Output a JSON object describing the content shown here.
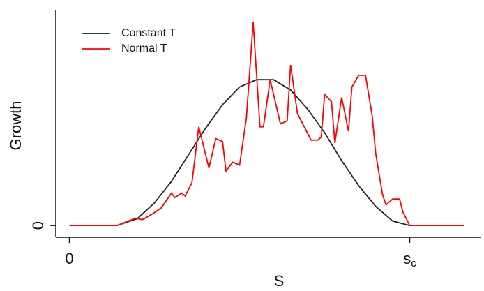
{
  "chart_data": {
    "type": "line",
    "xlabel": "S",
    "ylabel": "Growth",
    "xlim": [
      -0.04,
      1.21
    ],
    "ylim": [
      -0.08,
      1.46
    ],
    "xticks": [
      0,
      {
        "value": 1,
        "label": "sc"
      }
    ],
    "yticks": [
      0
    ],
    "legend": "top-left",
    "series": [
      {
        "name": "Constant T",
        "color": "#222222",
        "x": [
          0,
          0.14,
          0.2,
          0.25,
          0.3,
          0.35,
          0.4,
          0.45,
          0.5,
          0.55,
          0.6,
          0.65,
          0.7,
          0.75,
          0.8,
          0.85,
          0.9,
          0.95,
          1.0
        ],
        "values": [
          0,
          0,
          0.047,
          0.153,
          0.3,
          0.48,
          0.66,
          0.82,
          0.94,
          0.99,
          0.99,
          0.92,
          0.79,
          0.63,
          0.44,
          0.27,
          0.13,
          0.03,
          0
        ]
      },
      {
        "name": "Normal T",
        "color": "#ff0000",
        "x": [
          0,
          0.14,
          0.195,
          0.215,
          0.245,
          0.27,
          0.3,
          0.31,
          0.33,
          0.34,
          0.36,
          0.38,
          0.41,
          0.43,
          0.45,
          0.46,
          0.48,
          0.5,
          0.52,
          0.54,
          0.56,
          0.57,
          0.59,
          0.62,
          0.64,
          0.65,
          0.67,
          0.71,
          0.73,
          0.74,
          0.75,
          0.77,
          0.78,
          0.8,
          0.82,
          0.83,
          0.85,
          0.87,
          0.89,
          0.9,
          0.92,
          0.93,
          0.95,
          0.97,
          0.98,
          1.0,
          1.16
        ],
        "values": [
          0,
          0,
          0.05,
          0.04,
          0.08,
          0.12,
          0.22,
          0.19,
          0.22,
          0.2,
          0.29,
          0.67,
          0.39,
          0.59,
          0.57,
          0.37,
          0.43,
          0.41,
          0.73,
          1.38,
          0.67,
          0.67,
          0.99,
          0.69,
          0.71,
          1.09,
          0.76,
          0.58,
          0.58,
          0.6,
          0.89,
          0.84,
          0.56,
          0.87,
          0.64,
          0.94,
          1.02,
          1.02,
          0.74,
          0.49,
          0.21,
          0.14,
          0.18,
          0.18,
          0.09,
          0,
          0
        ]
      }
    ]
  }
}
